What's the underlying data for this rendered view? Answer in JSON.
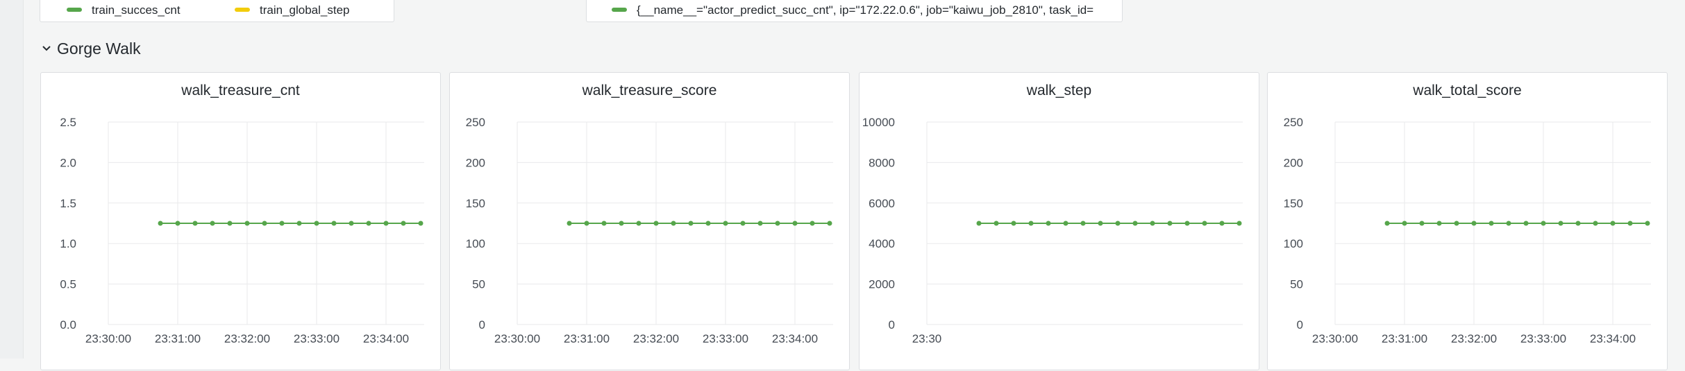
{
  "top_legends": {
    "left": [
      {
        "label": "train_succes_cnt",
        "color": "#56a64b"
      },
      {
        "label": "train_global_step",
        "color": "#f2cc0c"
      }
    ],
    "right": [
      {
        "label": "{__name__=\"actor_predict_succ_cnt\", ip=\"172.22.0.6\", job=\"kaiwu_job_2810\", task_id=",
        "color": "#56a64b"
      }
    ]
  },
  "row": {
    "title": "Gorge Walk",
    "collapse_icon": "chevron-down-icon"
  },
  "panels": [
    {
      "title": "walk_treasure_cnt"
    },
    {
      "title": "walk_treasure_score"
    },
    {
      "title": "walk_step"
    },
    {
      "title": "walk_total_score"
    }
  ],
  "chart_data": [
    {
      "type": "line",
      "title": "walk_treasure_cnt",
      "x_ticks": [
        "23:30:00",
        "23:31:00",
        "23:32:00",
        "23:33:00",
        "23:34:00"
      ],
      "y_ticks": [
        "0.0",
        "0.5",
        "1.0",
        "1.5",
        "2.0",
        "2.5"
      ],
      "ylim": [
        0,
        2.5
      ],
      "grid": true,
      "series": [
        {
          "color": "#56a64b",
          "x": [
            "23:30:45",
            "23:31:00",
            "23:31:15",
            "23:31:30",
            "23:31:45",
            "23:32:00",
            "23:32:15",
            "23:32:30",
            "23:32:45",
            "23:33:00",
            "23:33:15",
            "23:33:30",
            "23:33:45",
            "23:34:00",
            "23:34:15",
            "23:34:30"
          ],
          "values": [
            1.25,
            1.25,
            1.25,
            1.25,
            1.25,
            1.25,
            1.25,
            1.25,
            1.25,
            1.25,
            1.25,
            1.25,
            1.25,
            1.25,
            1.25,
            1.25
          ]
        }
      ]
    },
    {
      "type": "line",
      "title": "walk_treasure_score",
      "x_ticks": [
        "23:30:00",
        "23:31:00",
        "23:32:00",
        "23:33:00",
        "23:34:00"
      ],
      "y_ticks": [
        "0",
        "50",
        "100",
        "150",
        "200",
        "250"
      ],
      "ylim": [
        0,
        250
      ],
      "grid": true,
      "series": [
        {
          "color": "#56a64b",
          "x": [
            "23:30:45",
            "23:31:00",
            "23:31:15",
            "23:31:30",
            "23:31:45",
            "23:32:00",
            "23:32:15",
            "23:32:30",
            "23:32:45",
            "23:33:00",
            "23:33:15",
            "23:33:30",
            "23:33:45",
            "23:34:00",
            "23:34:15",
            "23:34:30"
          ],
          "values": [
            125,
            125,
            125,
            125,
            125,
            125,
            125,
            125,
            125,
            125,
            125,
            125,
            125,
            125,
            125,
            125
          ]
        }
      ]
    },
    {
      "type": "line",
      "title": "walk_step",
      "x_ticks": [
        "23:30"
      ],
      "y_ticks": [
        "0",
        "2000",
        "4000",
        "6000",
        "8000",
        "10000"
      ],
      "ylim": [
        0,
        10000
      ],
      "grid": true,
      "series": [
        {
          "color": "#56a64b",
          "x": [
            "23:30:45",
            "23:31:00",
            "23:31:15",
            "23:31:30",
            "23:31:45",
            "23:32:00",
            "23:32:15",
            "23:32:30",
            "23:32:45",
            "23:33:00",
            "23:33:15",
            "23:33:30",
            "23:33:45",
            "23:34:00",
            "23:34:15",
            "23:34:30"
          ],
          "values": [
            5000,
            5000,
            5000,
            5000,
            5000,
            5000,
            5000,
            5000,
            5000,
            5000,
            5000,
            5000,
            5000,
            5000,
            5000,
            5000
          ]
        }
      ]
    },
    {
      "type": "line",
      "title": "walk_total_score",
      "x_ticks": [
        "23:30:00",
        "23:31:00",
        "23:32:00",
        "23:33:00",
        "23:34:00"
      ],
      "y_ticks": [
        "0",
        "50",
        "100",
        "150",
        "200",
        "250"
      ],
      "ylim": [
        0,
        250
      ],
      "grid": true,
      "series": [
        {
          "color": "#56a64b",
          "x": [
            "23:30:45",
            "23:31:00",
            "23:31:15",
            "23:31:30",
            "23:31:45",
            "23:32:00",
            "23:32:15",
            "23:32:30",
            "23:32:45",
            "23:33:00",
            "23:33:15",
            "23:33:30",
            "23:33:45",
            "23:34:00",
            "23:34:15",
            "23:34:30"
          ],
          "values": [
            125,
            125,
            125,
            125,
            125,
            125,
            125,
            125,
            125,
            125,
            125,
            125,
            125,
            125,
            125,
            125
          ]
        }
      ]
    }
  ]
}
